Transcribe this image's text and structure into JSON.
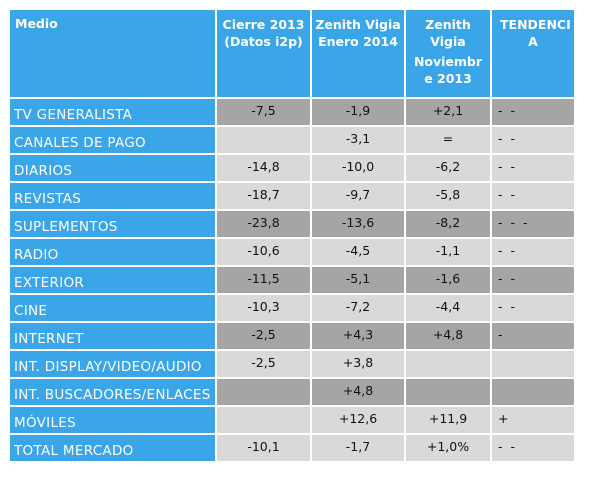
{
  "header": {
    "medio": "Medio",
    "col1": [
      "Cierre 2013",
      "(Datos i2p)"
    ],
    "col2": [
      "Zenith Vigia",
      "Enero 2014"
    ],
    "col3": [
      "Zenith",
      "Vigia",
      "Noviembr",
      "e 2013"
    ],
    "col4": [
      "TENDENCI",
      "A"
    ]
  },
  "rows": [
    {
      "label": "TV GENERALISTA",
      "c1": "-7,5",
      "c2": "-1,9",
      "c3": "+2,1",
      "tend": "- -",
      "shade": "dark"
    },
    {
      "label": "CANALES DE PAGO",
      "c1": "",
      "c2": "-3,1",
      "c3": "=",
      "tend": "- -",
      "shade": "light"
    },
    {
      "label": "DIARIOS",
      "c1": "-14,8",
      "c2": "-10,0",
      "c3": "-6,2",
      "tend": "- -",
      "shade": "light"
    },
    {
      "label": "REVISTAS",
      "c1": "-18,7",
      "c2": "-9,7",
      "c3": "-5,8",
      "tend": "- -",
      "shade": "light"
    },
    {
      "label": "SUPLEMENTOS",
      "c1": "-23,8",
      "c2": "-13,6",
      "c3": "-8,2",
      "tend": "- - -",
      "shade": "dark"
    },
    {
      "label": "RADIO",
      "c1": "-10,6",
      "c2": "-4,5",
      "c3": "-1,1",
      "tend": "- -",
      "shade": "light"
    },
    {
      "label": "EXTERIOR",
      "c1": "-11,5",
      "c2": "-5,1",
      "c3": "-1,6",
      "tend": "- -",
      "shade": "dark"
    },
    {
      "label": "CINE",
      "c1": "-10,3",
      "c2": "-7,2",
      "c3": "-4,4",
      "tend": "- -",
      "shade": "light"
    },
    {
      "label": "INTERNET",
      "c1": "-2,5",
      "c2": "+4,3",
      "c3": "+4,8",
      "tend": "-",
      "shade": "dark"
    },
    {
      "label": "INT. DISPLAY/VIDEO/AUDIO",
      "c1": "-2,5",
      "c2": "+3,8",
      "c3": "",
      "tend": "",
      "shade": "light"
    },
    {
      "label": "INT. BUSCADORES/ENLACES",
      "c1": "",
      "c2": "+4,8",
      "c3": "",
      "tend": "",
      "shade": "dark"
    },
    {
      "label": "MÓVILES",
      "c1": "",
      "c2": "+12,6",
      "c3": "+11,9",
      "tend": "+",
      "shade": "light"
    },
    {
      "label": "TOTAL MERCADO",
      "c1": "-10,1",
      "c2": "-1,7",
      "c3": "+1,0%",
      "tend": "- -",
      "shade": "light"
    }
  ],
  "colors": {
    "header_blue": "#3aa6e8",
    "dark_gray": "#a5a5a5",
    "light_gray": "#d9d9d9"
  }
}
